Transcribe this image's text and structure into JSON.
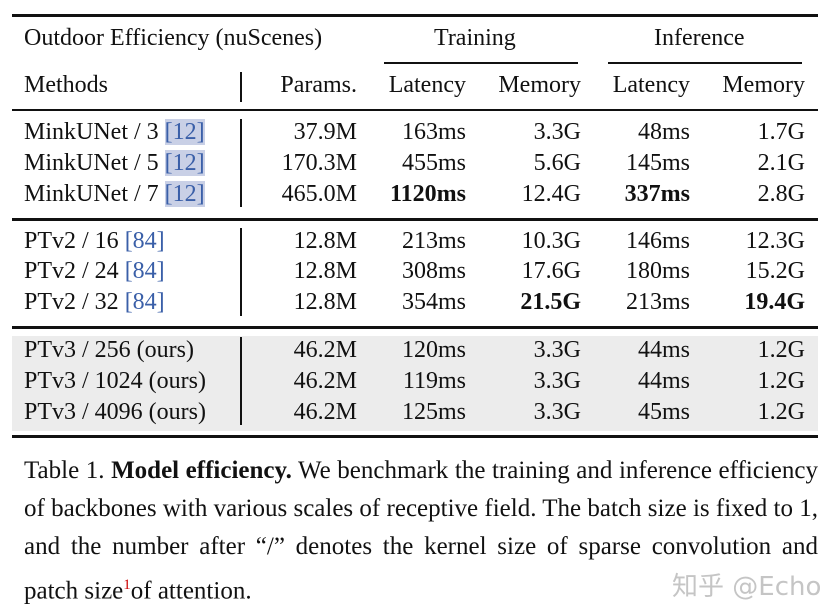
{
  "header": {
    "group_title": "Outdoor Efficiency (nuScenes)",
    "training": "Training",
    "inference": "Inference",
    "columns": [
      "Methods",
      "Params.",
      "Latency",
      "Memory",
      "Latency",
      "Memory"
    ]
  },
  "groups": [
    {
      "rows": [
        {
          "method": "MinkUNet / 3 ",
          "cite": "[12]",
          "params": "37.9M",
          "train_latency": "163ms",
          "train_memory": "3.3G",
          "inf_latency": "48ms",
          "inf_memory": "1.7G"
        },
        {
          "method": "MinkUNet / 5 ",
          "cite": "[12]",
          "params": "170.3M",
          "train_latency": "455ms",
          "train_memory": "5.6G",
          "inf_latency": "145ms",
          "inf_memory": "2.1G"
        },
        {
          "method": "MinkUNet / 7 ",
          "cite": "[12]",
          "params": "465.0M",
          "train_latency": "1120ms",
          "train_memory": "12.4G",
          "inf_latency": "337ms",
          "inf_memory": "2.8G"
        }
      ]
    },
    {
      "rows": [
        {
          "method": "PTv2 / 16 ",
          "cite": "[84]",
          "params": "12.8M",
          "train_latency": "213ms",
          "train_memory": "10.3G",
          "inf_latency": "146ms",
          "inf_memory": "12.3G"
        },
        {
          "method": "PTv2 / 24 ",
          "cite": "[84]",
          "params": "12.8M",
          "train_latency": "308ms",
          "train_memory": "17.6G",
          "inf_latency": "180ms",
          "inf_memory": "15.2G"
        },
        {
          "method": "PTv2 / 32 ",
          "cite": "[84]",
          "params": "12.8M",
          "train_latency": "354ms",
          "train_memory": "21.5G",
          "inf_latency": "213ms",
          "inf_memory": "19.4G"
        }
      ]
    },
    {
      "rows": [
        {
          "method": "PTv3 / 256 (ours)",
          "params": "46.2M",
          "train_latency": "120ms",
          "train_memory": "3.3G",
          "inf_latency": "44ms",
          "inf_memory": "1.2G"
        },
        {
          "method": "PTv3 / 1024 (ours)",
          "params": "46.2M",
          "train_latency": "119ms",
          "train_memory": "3.3G",
          "inf_latency": "44ms",
          "inf_memory": "1.2G"
        },
        {
          "method": "PTv3 / 4096 (ours)",
          "params": "46.2M",
          "train_latency": "125ms",
          "train_memory": "3.3G",
          "inf_latency": "45ms",
          "inf_memory": "1.2G"
        }
      ]
    }
  ],
  "bold_cells": [
    "1120ms",
    "337ms",
    "21.5G",
    "19.4G"
  ],
  "caption": {
    "label": "Table 1. ",
    "title": "Model efficiency.",
    "text": " We benchmark the training and inference efficiency of backbones with various scales of receptive field. The batch size is fixed to 1, and the number after “/” denotes the kernel size of sparse convolution and patch size",
    "footnote": "1",
    "text_end": "of attention."
  },
  "watermark": "知乎 @Echo",
  "colors": {
    "cite": "#3a5fa8",
    "cite_highlight": "#c9d0e6",
    "ours_background": "#ececec"
  }
}
